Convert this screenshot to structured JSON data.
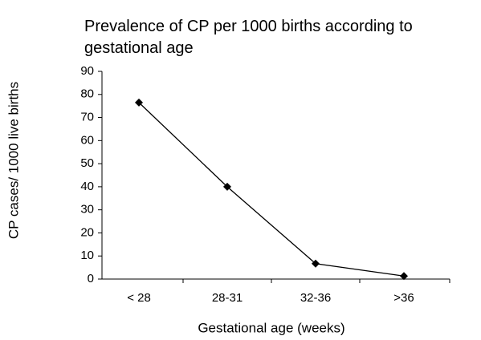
{
  "chart_data": {
    "type": "line",
    "title": "Prevalence of CP per 1000 births according to gestational age",
    "x_label": "Gestational age (weeks)",
    "y_label": "CP cases/ 1000 live births",
    "categories": [
      "< 28",
      "28-31",
      "32-36",
      ">36"
    ],
    "values": [
      76.5,
      40,
      6.7,
      1.3
    ],
    "color": "#000000",
    "marker": "diamond",
    "ylim": [
      0,
      90
    ],
    "yticks": [
      0,
      10,
      20,
      30,
      40,
      50,
      60,
      70,
      80,
      90
    ],
    "grid": false
  }
}
